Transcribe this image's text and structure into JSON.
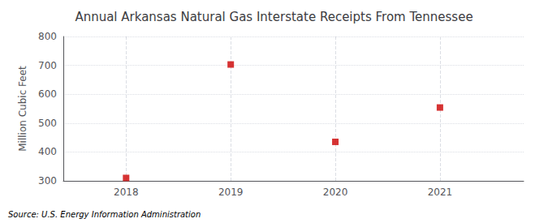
{
  "chart_data": {
    "type": "scatter",
    "title": "Annual Arkansas Natural Gas Interstate Receipts From Tennessee",
    "ylabel": "Million Cubic Feet",
    "source": "Source: U.S. Energy Information Administration",
    "x": [
      2018,
      2019,
      2020,
      2021
    ],
    "values": [
      310,
      703,
      435,
      554
    ],
    "color": "#cc0000",
    "marker": "square",
    "xlim": [
      2017.4,
      2021.8
    ],
    "xticks": [
      2018,
      2019,
      2020,
      2021
    ],
    "ylim": [
      300,
      800
    ],
    "yticks": [
      300,
      400,
      500,
      600,
      700,
      800
    ],
    "grid": true
  }
}
